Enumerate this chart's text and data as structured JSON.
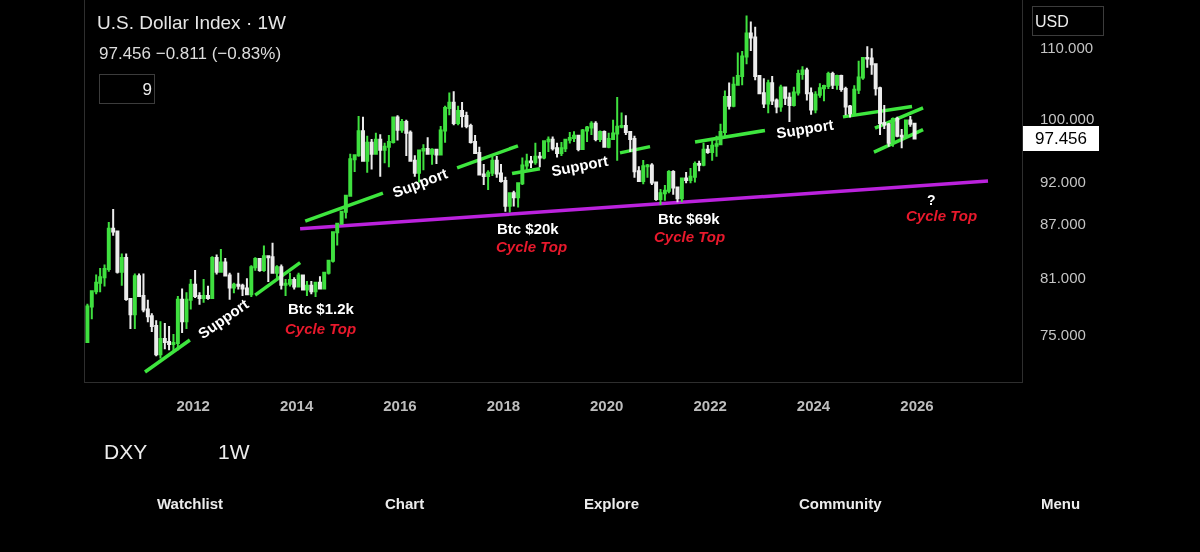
{
  "chart_data": {
    "type": "candlestick",
    "title": "U.S. Dollar Index · 1W",
    "subtitle": "97.456 −0.811 (−0.83%)",
    "log": true,
    "xlim": [
      "2009-11-28",
      "2028-01-13"
    ],
    "xticks": [
      "2012",
      "2014",
      "2016",
      "2018",
      "2020",
      "2022",
      "2024",
      "2026"
    ],
    "ylim": [
      70.45,
      117.2
    ],
    "yticks": [
      {
        "value": 75,
        "label": "75.000"
      },
      {
        "value": 81,
        "label": "81.000"
      },
      {
        "value": 87,
        "label": "87.000"
      },
      {
        "value": 92,
        "label": "92.000"
      },
      {
        "value": 100,
        "label": "100.000"
      },
      {
        "value": 110,
        "label": "110.000"
      }
    ],
    "x": [
      "2009-12-15",
      "2010-01-15",
      "2010-02-15",
      "2010-03-15",
      "2010-04-15",
      "2010-05-15",
      "2010-06-15",
      "2010-07-15",
      "2010-08-15",
      "2010-09-15",
      "2010-10-15",
      "2010-11-15",
      "2010-12-15",
      "2011-01-15",
      "2011-02-15",
      "2011-03-15",
      "2011-04-15",
      "2011-05-15",
      "2011-06-15",
      "2011-07-15",
      "2011-08-15",
      "2011-09-15",
      "2011-10-15",
      "2011-11-15",
      "2011-12-15",
      "2012-01-15",
      "2012-02-15",
      "2012-03-15",
      "2012-04-15",
      "2012-05-15",
      "2012-06-15",
      "2012-07-15",
      "2012-08-15",
      "2012-09-15",
      "2012-10-15",
      "2012-11-15",
      "2012-12-15",
      "2013-01-15",
      "2013-02-15",
      "2013-03-15",
      "2013-04-15",
      "2013-05-15",
      "2013-06-15",
      "2013-07-15",
      "2013-08-15",
      "2013-09-15",
      "2013-10-15",
      "2013-11-15",
      "2013-12-15",
      "2014-01-15",
      "2014-02-15",
      "2014-03-15",
      "2014-04-15",
      "2014-05-15",
      "2014-06-15",
      "2014-07-15",
      "2014-08-15",
      "2014-09-15",
      "2014-10-15",
      "2014-11-15",
      "2014-12-15",
      "2015-01-15",
      "2015-02-15",
      "2015-03-15",
      "2015-04-15",
      "2015-05-15",
      "2015-06-15",
      "2015-07-15",
      "2015-08-15",
      "2015-09-15",
      "2015-10-15",
      "2015-11-15",
      "2015-12-15",
      "2016-01-15",
      "2016-02-15",
      "2016-03-15",
      "2016-04-15",
      "2016-05-15",
      "2016-06-15",
      "2016-07-15",
      "2016-08-15",
      "2016-09-15",
      "2016-10-15",
      "2016-11-15",
      "2016-12-15",
      "2017-01-15",
      "2017-02-15",
      "2017-03-15",
      "2017-04-15",
      "2017-05-15",
      "2017-06-15",
      "2017-07-15",
      "2017-08-15",
      "2017-09-15",
      "2017-10-15",
      "2017-11-15",
      "2017-12-15",
      "2018-01-15",
      "2018-02-15",
      "2018-03-15",
      "2018-04-15",
      "2018-05-15",
      "2018-06-15",
      "2018-07-15",
      "2018-08-15",
      "2018-09-15",
      "2018-10-15",
      "2018-11-15",
      "2018-12-15",
      "2019-01-15",
      "2019-02-15",
      "2019-03-15",
      "2019-04-15",
      "2019-05-15",
      "2019-06-15",
      "2019-07-15",
      "2019-08-15",
      "2019-09-15",
      "2019-10-15",
      "2019-11-15",
      "2019-12-15",
      "2020-01-15",
      "2020-02-15",
      "2020-03-15",
      "2020-04-15",
      "2020-05-15",
      "2020-06-15",
      "2020-07-15",
      "2020-08-15",
      "2020-09-15",
      "2020-10-15",
      "2020-11-15",
      "2020-12-15",
      "2021-01-15",
      "2021-02-15",
      "2021-03-15",
      "2021-04-15",
      "2021-05-15",
      "2021-06-15",
      "2021-07-15",
      "2021-08-15",
      "2021-09-15",
      "2021-10-15",
      "2021-11-15",
      "2021-12-15",
      "2022-01-15",
      "2022-02-15",
      "2022-03-15",
      "2022-04-15",
      "2022-05-15",
      "2022-06-15",
      "2022-07-15",
      "2022-08-15",
      "2022-09-15",
      "2022-10-15",
      "2022-11-15",
      "2022-12-15",
      "2023-01-15",
      "2023-02-15",
      "2023-03-15",
      "2023-04-15",
      "2023-05-15",
      "2023-06-15",
      "2023-07-15",
      "2023-08-15",
      "2023-09-15",
      "2023-10-15",
      "2023-11-15",
      "2023-12-15",
      "2024-01-15",
      "2024-02-15",
      "2024-03-15",
      "2024-04-15",
      "2024-05-15",
      "2024-06-15",
      "2024-07-15",
      "2024-08-15",
      "2024-09-15",
      "2024-10-15",
      "2024-11-15",
      "2024-12-15",
      "2025-01-15",
      "2025-02-15",
      "2025-03-15",
      "2025-04-15",
      "2025-05-15",
      "2025-06-15",
      "2025-07-15",
      "2025-08-15",
      "2025-09-15",
      "2025-10-15",
      "2025-11-15",
      "2025-12-15"
    ],
    "ohlc": [
      [
        74.3,
        78.2,
        74.2,
        77.9
      ],
      [
        77.9,
        79.6,
        76.6,
        79.5
      ],
      [
        79.5,
        81.3,
        79.2,
        80.4
      ],
      [
        80.4,
        82.0,
        79.4,
        81.0
      ],
      [
        81.0,
        82.4,
        80.0,
        81.9
      ],
      [
        81.9,
        87.2,
        81.6,
        86.4
      ],
      [
        86.4,
        88.7,
        85.6,
        86.1
      ],
      [
        86.1,
        86.2,
        81.4,
        81.6
      ],
      [
        81.6,
        83.6,
        80.1,
        83.1
      ],
      [
        83.1,
        83.6,
        78.5,
        78.7
      ],
      [
        78.7,
        78.8,
        75.6,
        77.1
      ],
      [
        77.1,
        81.4,
        75.6,
        81.1
      ],
      [
        81.1,
        81.4,
        78.9,
        79.0
      ],
      [
        79.0,
        81.4,
        77.3,
        77.6
      ],
      [
        77.6,
        78.6,
        76.3,
        76.9
      ],
      [
        76.9,
        77.2,
        75.3,
        75.9
      ],
      [
        75.9,
        76.5,
        72.9,
        73.1
      ],
      [
        73.1,
        76.4,
        72.7,
        74.6
      ],
      [
        74.6,
        76.2,
        73.6,
        74.3
      ],
      [
        74.3,
        75.9,
        73.5,
        74.1
      ],
      [
        74.1,
        75.1,
        73.4,
        74.2
      ],
      [
        74.2,
        79.0,
        73.5,
        78.6
      ],
      [
        78.6,
        79.8,
        75.2,
        76.4
      ],
      [
        76.4,
        79.4,
        75.6,
        78.6
      ],
      [
        78.6,
        80.8,
        77.6,
        80.2
      ],
      [
        80.2,
        81.8,
        78.8,
        79.0
      ],
      [
        79.0,
        79.4,
        78.1,
        78.8
      ],
      [
        78.8,
        80.8,
        78.3,
        79.0
      ],
      [
        79.0,
        80.1,
        78.6,
        78.8
      ],
      [
        78.8,
        83.3,
        78.7,
        83.1
      ],
      [
        83.1,
        83.5,
        81.3,
        81.6
      ],
      [
        81.6,
        84.1,
        81.6,
        82.6
      ],
      [
        82.6,
        83.1,
        81.1,
        81.2
      ],
      [
        81.2,
        81.5,
        78.6,
        79.9
      ],
      [
        79.9,
        80.4,
        79.3,
        80.2
      ],
      [
        80.2,
        81.5,
        79.7,
        80.1
      ],
      [
        80.1,
        80.3,
        79.0,
        79.8
      ],
      [
        79.8,
        80.9,
        79.2,
        79.2
      ],
      [
        79.2,
        82.3,
        78.9,
        82.1
      ],
      [
        82.1,
        83.2,
        81.7,
        83.0
      ],
      [
        83.0,
        83.1,
        81.6,
        81.8
      ],
      [
        81.8,
        84.5,
        81.6,
        83.3
      ],
      [
        83.3,
        83.4,
        80.5,
        83.2
      ],
      [
        83.2,
        84.8,
        81.4,
        81.5
      ],
      [
        81.5,
        82.3,
        80.8,
        82.1
      ],
      [
        82.1,
        82.4,
        79.7,
        80.2
      ],
      [
        80.2,
        80.8,
        79.0,
        80.3
      ],
      [
        80.3,
        81.5,
        80.0,
        80.7
      ],
      [
        80.7,
        81.0,
        79.7,
        80.0
      ],
      [
        80.0,
        81.5,
        79.9,
        81.2
      ],
      [
        81.2,
        81.2,
        79.6,
        79.7
      ],
      [
        79.7,
        80.6,
        79.0,
        80.1
      ],
      [
        80.1,
        80.6,
        79.2,
        79.5
      ],
      [
        79.5,
        80.5,
        78.9,
        80.4
      ],
      [
        80.4,
        81.1,
        79.7,
        79.8
      ],
      [
        79.8,
        81.6,
        79.7,
        81.5
      ],
      [
        81.5,
        82.9,
        81.3,
        82.8
      ],
      [
        82.8,
        86.1,
        82.6,
        86.0
      ],
      [
        86.0,
        87.1,
        84.5,
        87.0
      ],
      [
        87.0,
        88.5,
        86.9,
        88.4
      ],
      [
        88.4,
        90.4,
        87.6,
        90.3
      ],
      [
        90.3,
        95.5,
        90.2,
        94.8
      ],
      [
        94.8,
        95.4,
        93.2,
        95.3
      ],
      [
        95.3,
        100.4,
        95.1,
        98.4
      ],
      [
        98.4,
        100.3,
        94.5,
        94.6
      ],
      [
        94.6,
        97.8,
        93.1,
        96.9
      ],
      [
        96.9,
        97.4,
        93.5,
        95.5
      ],
      [
        95.5,
        98.2,
        95.4,
        97.3
      ],
      [
        97.3,
        98.0,
        92.6,
        96.0
      ],
      [
        96.0,
        96.9,
        94.3,
        96.4
      ],
      [
        96.4,
        97.9,
        93.8,
        97.0
      ],
      [
        97.0,
        100.3,
        96.8,
        100.2
      ],
      [
        100.2,
        100.5,
        97.2,
        98.6
      ],
      [
        98.6,
        100.0,
        98.2,
        99.6
      ],
      [
        99.6,
        99.9,
        95.2,
        98.2
      ],
      [
        98.2,
        98.5,
        94.5,
        94.6
      ],
      [
        94.6,
        95.3,
        92.6,
        93.1
      ],
      [
        93.1,
        96.0,
        91.9,
        95.9
      ],
      [
        95.9,
        96.7,
        93.4,
        96.1
      ],
      [
        96.1,
        97.6,
        95.4,
        95.5
      ],
      [
        95.5,
        96.2,
        94.1,
        96.0
      ],
      [
        96.0,
        96.1,
        94.2,
        95.4
      ],
      [
        95.4,
        99.1,
        95.3,
        98.5
      ],
      [
        98.5,
        101.8,
        96.9,
        101.5
      ],
      [
        101.5,
        103.6,
        100.5,
        102.2
      ],
      [
        102.2,
        103.8,
        99.2,
        99.5
      ],
      [
        99.5,
        101.8,
        99.2,
        101.1
      ],
      [
        101.1,
        102.3,
        98.9,
        100.4
      ],
      [
        100.4,
        101.0,
        98.8,
        99.1
      ],
      [
        99.1,
        99.4,
        96.8,
        97.0
      ],
      [
        97.0,
        97.9,
        95.5,
        95.6
      ],
      [
        95.6,
        96.4,
        92.8,
        92.9
      ],
      [
        92.9,
        94.2,
        91.6,
        92.7
      ],
      [
        92.7,
        93.4,
        91.0,
        93.1
      ],
      [
        93.1,
        95.2,
        92.7,
        94.6
      ],
      [
        94.6,
        95.2,
        92.5,
        93.0
      ],
      [
        93.0,
        94.2,
        91.9,
        92.1
      ],
      [
        92.1,
        92.6,
        88.4,
        89.1
      ],
      [
        89.1,
        90.7,
        88.3,
        90.6
      ],
      [
        90.6,
        90.9,
        89.0,
        90.1
      ],
      [
        90.1,
        91.9,
        88.9,
        91.8
      ],
      [
        91.8,
        95.0,
        91.6,
        94.0
      ],
      [
        94.0,
        95.5,
        93.2,
        94.5
      ],
      [
        94.5,
        95.2,
        93.7,
        94.4
      ],
      [
        94.4,
        96.9,
        94.1,
        95.1
      ],
      [
        95.1,
        95.7,
        93.8,
        95.0
      ],
      [
        95.0,
        97.2,
        94.8,
        97.1
      ],
      [
        97.1,
        97.7,
        95.7,
        97.3
      ],
      [
        97.3,
        97.7,
        95.9,
        96.2
      ],
      [
        96.2,
        96.9,
        95.0,
        95.6
      ],
      [
        95.6,
        97.0,
        95.2,
        96.2
      ],
      [
        96.2,
        97.4,
        95.7,
        97.3
      ],
      [
        97.3,
        98.3,
        96.8,
        97.5
      ],
      [
        97.5,
        98.4,
        97.0,
        97.8
      ],
      [
        97.8,
        97.9,
        95.8,
        96.1
      ],
      [
        96.1,
        98.7,
        96.0,
        98.5
      ],
      [
        98.5,
        99.1,
        97.0,
        98.9
      ],
      [
        98.9,
        99.7,
        97.9,
        99.4
      ],
      [
        99.4,
        99.7,
        97.1,
        97.4
      ],
      [
        97.4,
        98.5,
        97.0,
        98.3
      ],
      [
        98.3,
        98.5,
        96.3,
        96.4
      ],
      [
        96.4,
        98.2,
        96.2,
        97.4
      ],
      [
        97.4,
        99.9,
        97.3,
        98.1
      ],
      [
        98.1,
        103.0,
        94.6,
        99.0
      ],
      [
        99.0,
        100.9,
        98.8,
        99.1
      ],
      [
        99.1,
        100.5,
        97.9,
        98.3
      ],
      [
        98.3,
        98.4,
        95.7,
        97.4
      ],
      [
        97.4,
        97.8,
        92.5,
        93.3
      ],
      [
        93.3,
        93.9,
        92.0,
        92.1
      ],
      [
        92.1,
        94.7,
        91.7,
        93.9
      ],
      [
        93.9,
        94.2,
        92.5,
        94.0
      ],
      [
        94.0,
        94.3,
        91.6,
        91.9
      ],
      [
        91.9,
        92.0,
        89.7,
        89.9
      ],
      [
        89.9,
        91.1,
        89.2,
        90.6
      ],
      [
        90.6,
        91.6,
        89.7,
        90.9
      ],
      [
        90.9,
        93.4,
        90.6,
        93.2
      ],
      [
        93.2,
        93.4,
        90.4,
        91.3
      ],
      [
        91.3,
        91.4,
        89.5,
        90.0
      ],
      [
        90.0,
        92.5,
        89.5,
        92.4
      ],
      [
        92.4,
        93.2,
        91.8,
        92.2
      ],
      [
        92.2,
        93.7,
        91.8,
        92.6
      ],
      [
        92.6,
        94.5,
        91.9,
        94.2
      ],
      [
        94.2,
        94.6,
        93.3,
        94.1
      ],
      [
        94.1,
        96.9,
        93.9,
        96.0
      ],
      [
        96.0,
        96.6,
        95.5,
        95.7
      ],
      [
        95.7,
        97.4,
        94.6,
        96.5
      ],
      [
        96.5,
        97.8,
        95.1,
        96.7
      ],
      [
        96.7,
        99.4,
        96.6,
        98.3
      ],
      [
        98.3,
        103.9,
        97.7,
        103.0
      ],
      [
        103.0,
        105.0,
        101.3,
        101.8
      ],
      [
        101.8,
        105.8,
        101.6,
        104.7
      ],
      [
        104.7,
        109.3,
        104.6,
        105.9
      ],
      [
        105.9,
        109.5,
        104.6,
        108.7
      ],
      [
        108.7,
        114.8,
        107.6,
        112.1
      ],
      [
        112.1,
        113.9,
        109.5,
        111.5
      ],
      [
        111.5,
        113.1,
        105.3,
        105.9
      ],
      [
        105.9,
        106.0,
        103.4,
        103.5
      ],
      [
        103.5,
        105.6,
        101.5,
        102.1
      ],
      [
        102.1,
        105.4,
        100.8,
        104.9
      ],
      [
        104.9,
        105.9,
        101.9,
        102.5
      ],
      [
        102.5,
        102.8,
        100.8,
        101.7
      ],
      [
        101.7,
        104.7,
        101.0,
        104.3
      ],
      [
        104.3,
        104.4,
        101.9,
        102.9
      ],
      [
        102.9,
        103.6,
        99.6,
        101.9
      ],
      [
        101.9,
        104.4,
        101.7,
        103.6
      ],
      [
        103.6,
        106.8,
        103.2,
        106.2
      ],
      [
        106.2,
        107.3,
        105.4,
        106.7
      ],
      [
        106.7,
        107.1,
        102.5,
        103.5
      ],
      [
        103.5,
        104.3,
        100.6,
        101.3
      ],
      [
        101.3,
        103.8,
        100.8,
        103.3
      ],
      [
        103.3,
        104.9,
        102.9,
        104.2
      ],
      [
        104.2,
        104.7,
        102.4,
        104.5
      ],
      [
        104.5,
        106.5,
        104.1,
        106.2
      ],
      [
        106.2,
        106.5,
        104.1,
        104.7
      ],
      [
        104.7,
        106.1,
        104.0,
        105.9
      ],
      [
        105.9,
        106.1,
        103.7,
        104.1
      ],
      [
        104.1,
        104.4,
        100.5,
        101.7
      ],
      [
        101.7,
        101.9,
        100.2,
        100.8
      ],
      [
        100.8,
        104.6,
        100.7,
        104.0
      ],
      [
        104.0,
        108.1,
        103.4,
        105.7
      ],
      [
        105.7,
        108.6,
        105.4,
        108.5
      ],
      [
        108.5,
        110.2,
        107.1,
        108.4
      ],
      [
        108.4,
        109.9,
        106.1,
        107.6
      ],
      [
        107.6,
        107.7,
        103.2,
        104.2
      ],
      [
        104.2,
        104.4,
        97.9,
        99.5
      ],
      [
        99.5,
        101.9,
        98.7,
        99.3
      ],
      [
        99.3,
        99.5,
        96.4,
        96.9
      ],
      [
        96.9,
        100.2,
        96.4,
        100.0
      ],
      [
        100.0,
        100.3,
        97.6,
        97.8
      ],
      [
        97.8,
        98.7,
        96.2,
        97.7
      ],
      [
        97.7,
        99.9,
        97.5,
        99.8
      ],
      [
        99.8,
        100.4,
        99.0,
        99.4
      ],
      [
        99.4,
        99.5,
        97.4,
        97.456
      ]
    ],
    "colors": [
      "#3fe03f",
      "#3fe03f",
      "#3fe03f",
      "#3fe03f",
      "#3fe03f",
      "#3fe03f",
      "#ececec",
      "#ececec",
      "#3fe03f",
      "#ececec",
      "#ececec",
      "#3fe03f",
      "#ececec",
      "#ececec",
      "#ececec",
      "#ececec",
      "#ececec",
      "#3fe03f",
      "#ececec",
      "#ececec",
      "#3fe03f",
      "#3fe03f",
      "#ececec",
      "#3fe03f",
      "#3fe03f",
      "#ececec",
      "#ececec",
      "#3fe03f",
      "#ececec",
      "#3fe03f",
      "#ececec",
      "#3fe03f",
      "#ececec",
      "#ececec",
      "#3fe03f",
      "#ececec",
      "#ececec",
      "#ececec",
      "#3fe03f",
      "#3fe03f",
      "#ececec",
      "#3fe03f",
      "#ececec",
      "#ececec",
      "#3fe03f",
      "#ececec",
      "#3fe03f",
      "#3fe03f",
      "#ececec",
      "#3fe03f",
      "#ececec",
      "#3fe03f",
      "#ececec",
      "#3fe03f",
      "#ececec",
      "#3fe03f",
      "#3fe03f",
      "#3fe03f",
      "#3fe03f",
      "#3fe03f",
      "#3fe03f",
      "#3fe03f",
      "#3fe03f",
      "#3fe03f",
      "#ececec",
      "#3fe03f",
      "#ececec",
      "#3fe03f",
      "#ececec",
      "#3fe03f",
      "#3fe03f",
      "#3fe03f",
      "#ececec",
      "#3fe03f",
      "#ececec",
      "#ececec",
      "#ececec",
      "#3fe03f",
      "#3fe03f",
      "#ececec",
      "#3fe03f",
      "#ececec",
      "#3fe03f",
      "#3fe03f",
      "#3fe03f",
      "#ececec",
      "#3fe03f",
      "#ececec",
      "#ececec",
      "#ececec",
      "#ececec",
      "#ececec",
      "#ececec",
      "#3fe03f",
      "#3fe03f",
      "#ececec",
      "#ececec",
      "#ececec",
      "#3fe03f",
      "#ececec",
      "#3fe03f",
      "#3fe03f",
      "#3fe03f",
      "#ececec",
      "#3fe03f",
      "#ececec",
      "#3fe03f",
      "#3fe03f",
      "#ececec",
      "#ececec",
      "#3fe03f",
      "#3fe03f",
      "#3fe03f",
      "#3fe03f",
      "#ececec",
      "#3fe03f",
      "#3fe03f",
      "#3fe03f",
      "#ececec",
      "#3fe03f",
      "#ececec",
      "#3fe03f",
      "#3fe03f",
      "#3fe03f",
      "#3fe03f",
      "#ececec",
      "#ececec",
      "#ececec",
      "#ececec",
      "#3fe03f",
      "#3fe03f",
      "#ececec",
      "#ececec",
      "#3fe03f",
      "#3fe03f",
      "#3fe03f",
      "#ececec",
      "#ececec",
      "#3fe03f",
      "#ececec",
      "#3fe03f",
      "#3fe03f",
      "#ececec",
      "#3fe03f",
      "#ececec",
      "#3fe03f",
      "#3fe03f",
      "#3fe03f",
      "#3fe03f",
      "#ececec",
      "#3fe03f",
      "#3fe03f",
      "#3fe03f",
      "#3fe03f",
      "#ececec",
      "#ececec",
      "#ececec",
      "#ececec",
      "#3fe03f",
      "#ececec",
      "#ececec",
      "#3fe03f",
      "#ececec",
      "#ececec",
      "#3fe03f",
      "#3fe03f",
      "#3fe03f",
      "#ececec",
      "#ececec",
      "#3fe03f",
      "#3fe03f",
      "#3fe03f",
      "#3fe03f",
      "#ececec",
      "#3fe03f",
      "#ececec",
      "#ececec",
      "#ececec",
      "#3fe03f",
      "#3fe03f",
      "#3fe03f",
      "#ececec",
      "#ececec",
      "#ececec",
      "#ececec",
      "#ececec",
      "#ececec",
      "#3fe03f",
      "#ececec",
      "#ececec",
      "#3fe03f",
      "#ececec",
      "#ececec"
    ],
    "series": [
      {
        "type": "line",
        "color": "#3ee63e",
        "x": [
          "2011-01-26",
          "2011-12-09"
        ],
        "values": [
          71.4,
          74.5
        ]
      },
      {
        "type": "line",
        "color": "#3ee63e",
        "x": [
          "2013-03-14",
          "2014-01-26"
        ],
        "values": [
          79.1,
          82.6
        ]
      },
      {
        "type": "line",
        "color": "#3ee63e",
        "x": [
          "2014-03-03",
          "2015-09-03"
        ],
        "values": [
          87.3,
          90.6
        ]
      },
      {
        "type": "line",
        "color": "#3ee63e",
        "x": [
          "2017-02-08",
          "2018-04-14"
        ],
        "values": [
          93.7,
          96.5
        ]
      },
      {
        "type": "line",
        "color": "#3ee63e",
        "x": [
          "2018-03-03",
          "2018-09-16"
        ],
        "values": [
          93.0,
          93.6
        ]
      },
      {
        "type": "line",
        "color": "#3ee63e",
        "x": [
          "2020-04-04",
          "2020-11-02"
        ],
        "values": [
          95.6,
          96.4
        ]
      },
      {
        "type": "line",
        "color": "#3ee63e",
        "x": [
          "2021-09-16",
          "2023-01-23"
        ],
        "values": [
          97.0,
          98.5
        ]
      },
      {
        "type": "line",
        "color": "#3ee63e",
        "x": [
          "2024-07-27",
          "2025-11-27"
        ],
        "values": [
          100.3,
          101.7
        ]
      },
      {
        "type": "line",
        "color": "#3ee63e",
        "x": [
          "2025-03-10",
          "2026-02-13"
        ],
        "values": [
          98.8,
          101.5
        ]
      },
      {
        "type": "line",
        "color": "#3ee63e",
        "x": [
          "2025-03-03",
          "2026-02-13"
        ],
        "values": [
          95.7,
          98.6
        ]
      },
      {
        "type": "line",
        "color": "#bb22dd",
        "x": [
          "2014-01-26",
          "2027-05-18"
        ],
        "values": [
          86.4,
          92.1
        ]
      }
    ],
    "annotations": [
      "Support",
      "Support",
      "Support",
      "Support",
      "Btc $1.2k",
      "Cycle Top",
      "Btc $20k",
      "Cycle Top",
      "Btc $69k",
      "Cycle Top",
      "?",
      "Cycle Top",
      "97.456",
      "9",
      "USD",
      "DXY",
      "1W",
      "Watchlist",
      "Chart",
      "Explore",
      "Community",
      "Menu"
    ]
  }
}
